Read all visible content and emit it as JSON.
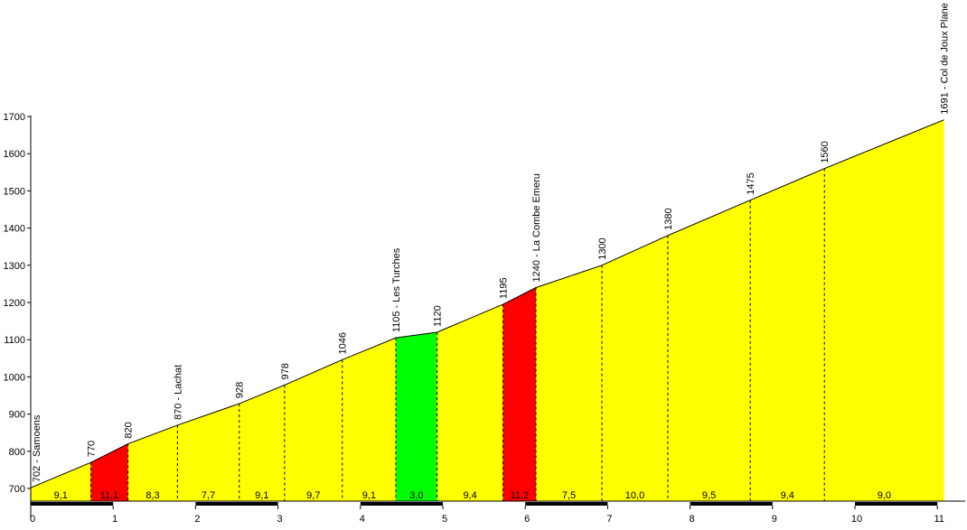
{
  "chart_data": {
    "type": "area",
    "title": "",
    "xlabel": "",
    "ylabel": "",
    "xlim": [
      0,
      11.1
    ],
    "ylim": [
      670,
      1720
    ],
    "x_ticks": [
      "0",
      "1",
      "2",
      "3",
      "4",
      "5",
      "6",
      "7",
      "8",
      "9",
      "10",
      "11"
    ],
    "y_ticks": [
      "700",
      "800",
      "900",
      "1000",
      "1100",
      "1200",
      "1300",
      "1400",
      "1500",
      "1600",
      "1700"
    ],
    "points": [
      {
        "x": 0.0,
        "y": 702,
        "label": "702 - Samoens"
      },
      {
        "x": 0.73,
        "y": 770,
        "label": "770"
      },
      {
        "x": 1.18,
        "y": 820,
        "label": "820"
      },
      {
        "x": 1.78,
        "y": 870,
        "label": "870 - Lachat"
      },
      {
        "x": 2.53,
        "y": 928,
        "label": "928"
      },
      {
        "x": 3.08,
        "y": 978,
        "label": "978"
      },
      {
        "x": 3.78,
        "y": 1046,
        "label": "1046"
      },
      {
        "x": 4.43,
        "y": 1105,
        "label": "1105 - Les Turches"
      },
      {
        "x": 4.93,
        "y": 1120,
        "label": "1120"
      },
      {
        "x": 5.73,
        "y": 1195,
        "label": "1195"
      },
      {
        "x": 6.13,
        "y": 1240,
        "label": "1240 - La Combe Emeru"
      },
      {
        "x": 6.93,
        "y": 1300,
        "label": "1300"
      },
      {
        "x": 7.73,
        "y": 1380,
        "label": "1380"
      },
      {
        "x": 8.73,
        "y": 1475,
        "label": "1475"
      },
      {
        "x": 9.63,
        "y": 1560,
        "label": "1560"
      },
      {
        "x": 11.08,
        "y": 1691,
        "label": "1691 - Col de Joux Plane"
      }
    ],
    "segments": [
      {
        "gradient": "9,1",
        "color": "#ffff00"
      },
      {
        "gradient": "11,1",
        "color": "#ff0000"
      },
      {
        "gradient": "8,3",
        "color": "#ffff00"
      },
      {
        "gradient": "7,7",
        "color": "#ffff00"
      },
      {
        "gradient": "9,1",
        "color": "#ffff00"
      },
      {
        "gradient": "9,7",
        "color": "#ffff00"
      },
      {
        "gradient": "9,1",
        "color": "#ffff00"
      },
      {
        "gradient": "3,0",
        "color": "#00ff00"
      },
      {
        "gradient": "9,4",
        "color": "#ffff00"
      },
      {
        "gradient": "11,2",
        "color": "#ff0000"
      },
      {
        "gradient": "7,5",
        "color": "#ffff00"
      },
      {
        "gradient": "10,0",
        "color": "#ffff00"
      },
      {
        "gradient": "9,5",
        "color": "#ffff00"
      },
      {
        "gradient": "9,4",
        "color": "#ffff00"
      },
      {
        "gradient": "9,0",
        "color": "#ffff00"
      }
    ]
  }
}
